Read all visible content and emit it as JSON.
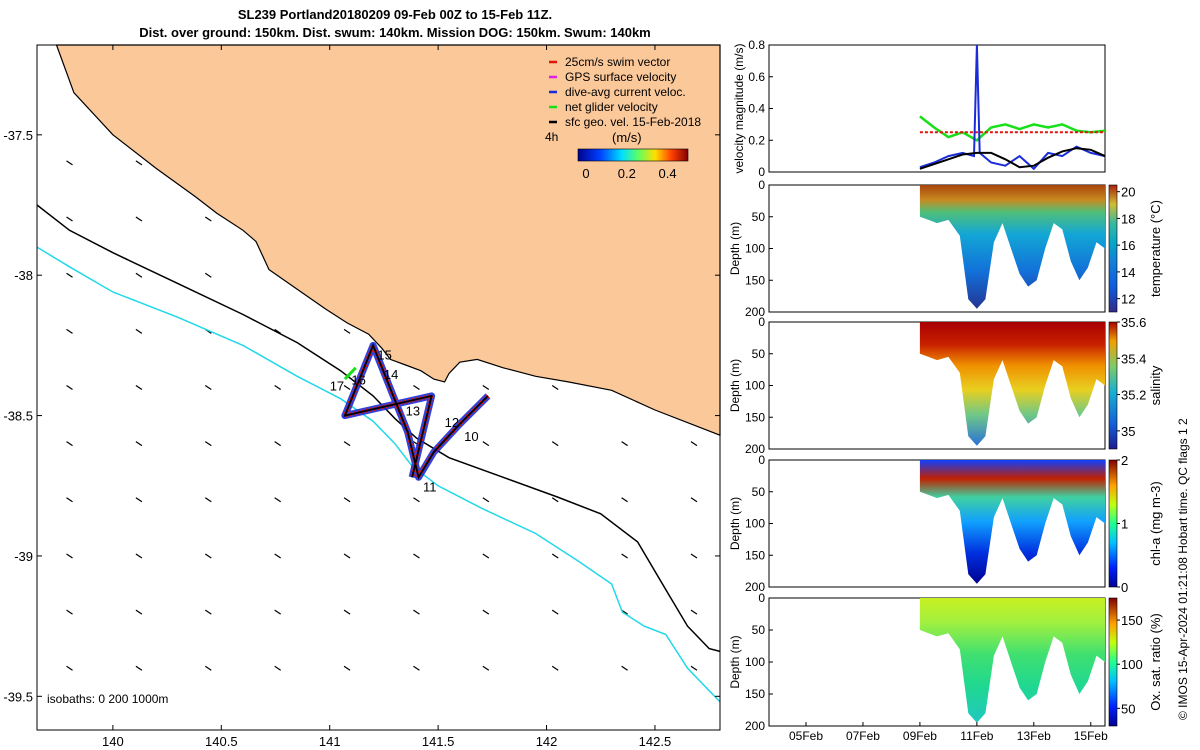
{
  "figure": {
    "title_line1": "SL239 Portland20180209 09-Feb 00Z to 15-Feb 11Z.",
    "title_line2": "Dist. over ground: 150km. Dist. swum: 140km. Mission DOG: 150km. Swum: 140km",
    "credit": "© IMOS 15-Apr-2024 01:21:08 Hobart time. QC flags 1  2"
  },
  "colors": {
    "land": "#fbc89a",
    "isobath_200": "#000000",
    "isobath_1000": "#21d8e8",
    "swim": "#e0140a",
    "gps": "#e020e0",
    "current": "#1a2cd8",
    "net": "#18e018",
    "geo": "#000000"
  },
  "map": {
    "legend": [
      {
        "label": "25cm/s swim vector",
        "color_key": "swim"
      },
      {
        "label": "GPS surface velocity",
        "color_key": "gps"
      },
      {
        "label": "dive-avg current veloc.",
        "color_key": "current"
      },
      {
        "label": "net glider velocity",
        "color_key": "net"
      },
      {
        "label": "sfc geo. vel. 15-Feb-2018",
        "color_key": "geo"
      }
    ],
    "scale_label": "4h",
    "colorbar_label": "(m/s)",
    "colorbar_ticks": [
      "0",
      "0.2",
      "0.4"
    ],
    "isobath_note": "isobaths: 0   200  1000m",
    "day_labels": [
      "10",
      "11",
      "12",
      "13",
      "14",
      "15",
      "16",
      "17"
    ]
  },
  "chart_data": [
    {
      "type": "line",
      "name": "map",
      "xlim": [
        139.65,
        142.8
      ],
      "ylim": [
        -39.62,
        -37.18
      ],
      "x_ticks": [
        140,
        140.5,
        141,
        141.5,
        142,
        142.5
      ],
      "x_tick_labels": [
        "140",
        "140.5",
        "141",
        "141.5",
        "142",
        "142.5"
      ],
      "y_ticks": [
        -37.5,
        -38,
        -38.5,
        -39,
        -39.5
      ],
      "y_tick_labels": [
        "-37.5",
        "-38",
        "-38.5",
        "-39",
        "-39.5"
      ],
      "track": [
        [
          141.73,
          -38.43
        ],
        [
          141.6,
          -38.53
        ],
        [
          141.48,
          -38.63
        ],
        [
          141.41,
          -38.72
        ],
        [
          141.36,
          -38.56
        ],
        [
          141.2,
          -38.25
        ],
        [
          141.07,
          -38.5
        ],
        [
          141.47,
          -38.43
        ],
        [
          141.38,
          -38.72
        ]
      ],
      "day_marks": [
        {
          "label": "10",
          "lon": 141.62,
          "lat": -38.59
        },
        {
          "label": "11",
          "lon": 141.43,
          "lat": -38.77
        },
        {
          "label": "12",
          "lon": 141.53,
          "lat": -38.54
        },
        {
          "label": "13",
          "lon": 141.35,
          "lat": -38.5
        },
        {
          "label": "14",
          "lon": 141.25,
          "lat": -38.37
        },
        {
          "label": "15",
          "lon": 141.22,
          "lat": -38.3
        },
        {
          "label": "16",
          "lon": 141.1,
          "lat": -38.39
        },
        {
          "label": "17",
          "lon": 141.0,
          "lat": -38.41
        }
      ]
    },
    {
      "type": "line",
      "name": "velocity",
      "ylabel": "velocity magnitude (m/s)",
      "ylim": [
        0,
        0.8
      ],
      "y_ticks": [
        0,
        0.2,
        0.4,
        0.6,
        0.8
      ],
      "y_tick_labels": [
        "0",
        "0.2",
        "0.4",
        "0.6",
        "0.8"
      ],
      "xlim": [
        3.7,
        15.5
      ],
      "series": [
        {
          "color_key": "net",
          "x": [
            9,
            9.5,
            10,
            10.5,
            11,
            11.5,
            12,
            12.5,
            13,
            13.5,
            14,
            14.5,
            15,
            15.5
          ],
          "y": [
            0.35,
            0.28,
            0.22,
            0.25,
            0.2,
            0.28,
            0.3,
            0.27,
            0.3,
            0.28,
            0.3,
            0.26,
            0.25,
            0.26
          ]
        },
        {
          "color_key": "swim",
          "x": [
            9,
            10,
            11,
            12,
            13,
            14,
            15,
            15.5
          ],
          "y": [
            0.25,
            0.25,
            0.25,
            0.25,
            0.25,
            0.25,
            0.25,
            0.25
          ]
        },
        {
          "color_key": "current",
          "x": [
            9,
            9.5,
            10,
            10.5,
            10.9,
            11,
            11.1,
            11.5,
            12,
            12.5,
            13,
            13.5,
            14,
            14.5,
            15,
            15.5
          ],
          "y": [
            0.03,
            0.06,
            0.1,
            0.12,
            0.1,
            0.8,
            0.12,
            0.06,
            0.04,
            0.1,
            0.02,
            0.12,
            0.1,
            0.16,
            0.12,
            0.1
          ]
        },
        {
          "color_key": "geo",
          "x": [
            9,
            9.5,
            10,
            10.5,
            11,
            11.5,
            12,
            12.5,
            13,
            13.5,
            14,
            14.5,
            15,
            15.5
          ],
          "y": [
            0.02,
            0.05,
            0.08,
            0.11,
            0.12,
            0.12,
            0.08,
            0.03,
            0.04,
            0.09,
            0.13,
            0.15,
            0.14,
            0.1
          ]
        }
      ]
    },
    {
      "type": "heatmap",
      "name": "temperature",
      "ylabel": "Depth (m)",
      "clabel": "temperature (°C)",
      "ylim": [
        0,
        200
      ],
      "y_ticks": [
        0,
        50,
        100,
        150,
        200
      ],
      "y_tick_labels": [
        "0",
        "50",
        "100",
        "150",
        "200"
      ],
      "clim": [
        11,
        20.5
      ],
      "c_ticks": [
        12,
        14,
        16,
        18,
        20
      ],
      "c_tick_labels": [
        "12",
        "14",
        "16",
        "18",
        "20"
      ],
      "colormap": "parula"
    },
    {
      "type": "heatmap",
      "name": "salinity",
      "ylabel": "Depth (m)",
      "clabel": "salinity",
      "ylim": [
        0,
        200
      ],
      "y_ticks": [
        0,
        50,
        100,
        150,
        200
      ],
      "y_tick_labels": [
        "0",
        "50",
        "100",
        "150",
        "200"
      ],
      "clim": [
        34.9,
        35.6
      ],
      "c_ticks": [
        35,
        35.2,
        35.4,
        35.6
      ],
      "c_tick_labels": [
        "35",
        "35.2",
        "35.4",
        "35.6"
      ],
      "colormap": "parula"
    },
    {
      "type": "heatmap",
      "name": "chla",
      "ylabel": "Depth (m)",
      "clabel": "chl-a (mg m-3)",
      "ylim": [
        0,
        200
      ],
      "y_ticks": [
        0,
        50,
        100,
        150,
        200
      ],
      "y_tick_labels": [
        "0",
        "50",
        "100",
        "150",
        "200"
      ],
      "clim": [
        0,
        2
      ],
      "c_ticks": [
        0,
        1,
        2
      ],
      "c_tick_labels": [
        "0",
        "1",
        "2"
      ],
      "colormap": "jet"
    },
    {
      "type": "heatmap",
      "name": "oxygen",
      "ylabel": "Depth (m)",
      "clabel": "Ox. sat. ratio (%)",
      "ylim": [
        0,
        200
      ],
      "y_ticks": [
        0,
        50,
        100,
        150,
        200
      ],
      "y_tick_labels": [
        "0",
        "50",
        "100",
        "150",
        "200"
      ],
      "clim": [
        30,
        175
      ],
      "c_ticks": [
        50,
        100,
        150
      ],
      "c_tick_labels": [
        "50",
        "100",
        "150"
      ],
      "colormap": "jet",
      "x_ticks": [
        5,
        7,
        9,
        11,
        13,
        15
      ],
      "x_tick_labels": [
        "05Feb",
        "07Feb",
        "09Feb",
        "11Feb",
        "13Feb",
        "15Feb"
      ]
    }
  ]
}
